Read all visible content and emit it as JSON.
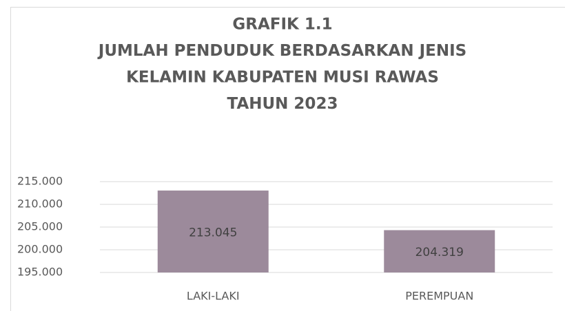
{
  "chart_data": {
    "type": "bar",
    "title": [
      "GRAFIK 1.1",
      "JUMLAH PENDUDUK BERDASARKAN JENIS",
      "KELAMIN KABUPATEN MUSI RAWAS",
      "TAHUN 2023"
    ],
    "categories": [
      "LAKI-LAKI",
      "PEREMPUAN"
    ],
    "values": [
      213045,
      204319
    ],
    "value_labels": [
      "213.045",
      "204.319"
    ],
    "color": "#9c8a9b",
    "ylim": [
      195000,
      215000
    ],
    "yticks": [
      {
        "value": 195000,
        "label": "195.000"
      },
      {
        "value": 200000,
        "label": "200.000"
      },
      {
        "value": 205000,
        "label": "205.000"
      },
      {
        "value": 210000,
        "label": "210.000"
      },
      {
        "value": 215000,
        "label": "215.000"
      }
    ],
    "grid": true
  }
}
